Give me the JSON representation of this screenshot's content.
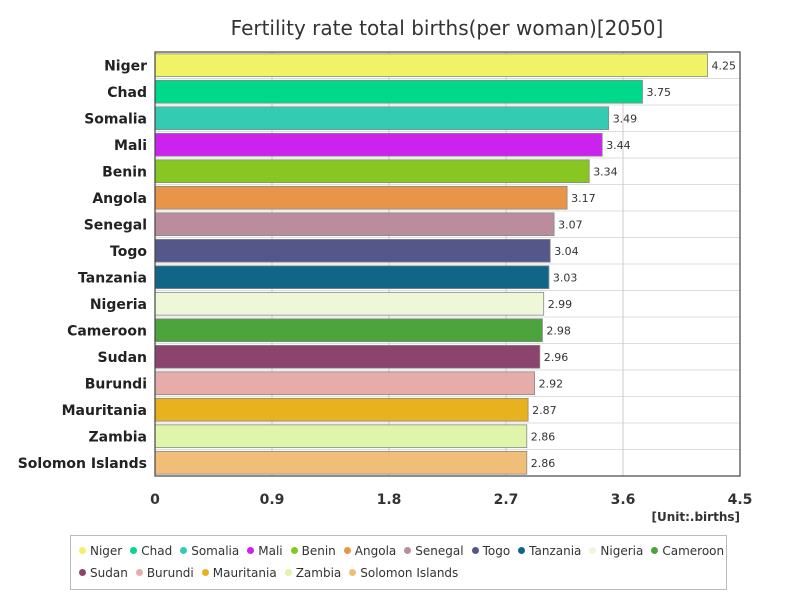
{
  "chart_data": {
    "type": "bar",
    "orientation": "horizontal",
    "title": "Fertility rate total births(per woman)[2050]",
    "unit_label": "[Unit:.births]",
    "xlim": [
      0,
      4.5
    ],
    "ticks": [
      "0",
      "0.9",
      "1.8",
      "2.7",
      "3.6",
      "4.5"
    ],
    "tick_values": [
      0,
      0.9,
      1.8,
      2.7,
      3.6,
      4.5
    ],
    "grid": true,
    "legend_position": "bottom",
    "categories": [
      "Niger",
      "Chad",
      "Somalia",
      "Mali",
      "Benin",
      "Angola",
      "Senegal",
      "Togo",
      "Tanzania",
      "Nigeria",
      "Cameroon",
      "Sudan",
      "Burundi",
      "Mauritania",
      "Zambia",
      "Solomon Islands"
    ],
    "values": [
      4.25,
      3.75,
      3.49,
      3.44,
      3.34,
      3.17,
      3.07,
      3.04,
      3.03,
      2.99,
      2.98,
      2.96,
      2.92,
      2.87,
      2.86,
      2.86
    ],
    "value_labels": [
      "4.25",
      "3.75",
      "3.49",
      "3.44",
      "3.34",
      "3.17",
      "3.07",
      "3.04",
      "3.03",
      "2.99",
      "2.98",
      "2.96",
      "2.92",
      "2.87",
      "2.86",
      "2.86"
    ],
    "colors": [
      "#f2f266",
      "#00d98c",
      "#33ccb3",
      "#cc22ee",
      "#88c722",
      "#e8954a",
      "#bb8c9c",
      "#55578a",
      "#116688",
      "#eef7d8",
      "#4da33c",
      "#8c446e",
      "#e6acaa",
      "#e8b11e",
      "#def5aa",
      "#f0be78"
    ]
  }
}
